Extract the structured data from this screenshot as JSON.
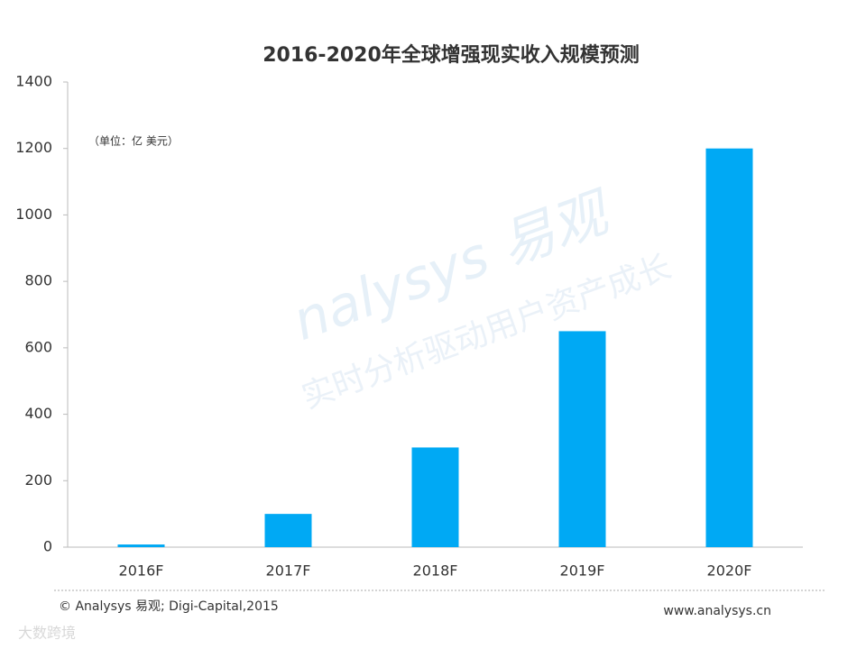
{
  "chart_data": {
    "type": "bar",
    "title": "2016-2020年全球增强现实收入规模预测",
    "unit_note": "（单位：亿  美元）",
    "categories": [
      "2016F",
      "2017F",
      "2018F",
      "2019F",
      "2020F"
    ],
    "values": [
      8,
      100,
      300,
      650,
      1200
    ],
    "color": "#00a9f4",
    "ylim": [
      0,
      1400
    ],
    "yticks": [
      0,
      200,
      400,
      600,
      800,
      1000,
      1200,
      1400
    ],
    "grid": false,
    "source": "© Analysys 易观; Digi-Capital,2015",
    "website": "www.analysys.cn",
    "watermark": [
      "nalysys 易观",
      "实时分析驱动用户资产成长",
      "大数跨境"
    ]
  }
}
